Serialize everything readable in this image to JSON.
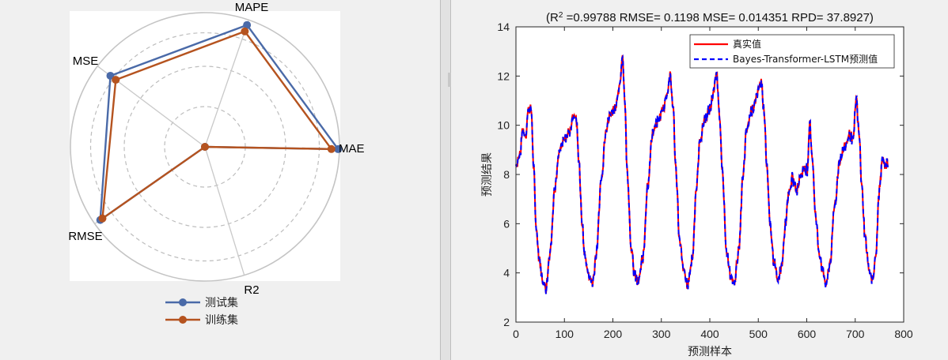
{
  "chart_data": [
    {
      "type": "radar",
      "axes": [
        "MAPE",
        "MAE",
        "R2",
        "RMSE",
        "MSE"
      ],
      "series": [
        {
          "name": "测试集",
          "color": "#4a6aa8",
          "values": [
            0.96,
            0.99,
            0.0,
            0.95,
            0.88
          ]
        },
        {
          "name": "训练集",
          "color": "#b5531f",
          "values": [
            0.91,
            0.94,
            0.0,
            0.93,
            0.83
          ]
        }
      ],
      "legend_position": "bottom"
    },
    {
      "type": "line",
      "title_prefix": "(R",
      "title_sup": "2",
      "title_rest": " =0.99788 RMSE= 0.1198 MSE= 0.014351 RPD= 37.8927)",
      "xlabel": "预测样本",
      "ylabel": "预测结果",
      "xlim": [
        0,
        800
      ],
      "ylim": [
        2,
        14
      ],
      "x_ticks": [
        0,
        100,
        200,
        300,
        400,
        500,
        600,
        700,
        800
      ],
      "y_ticks": [
        2,
        4,
        6,
        8,
        10,
        12,
        14
      ],
      "legend_position": "top-right",
      "series": [
        {
          "name": "真实值",
          "color": "#ff0000",
          "style": "solid"
        },
        {
          "name": "Bayes-Transformer-LSTM预测值",
          "color": "#0000ff",
          "style": "dashed"
        }
      ],
      "key_points": [
        [
          0,
          8.4
        ],
        [
          8,
          8.8
        ],
        [
          14,
          9.8
        ],
        [
          20,
          9.6
        ],
        [
          26,
          10.7
        ],
        [
          32,
          10.6
        ],
        [
          36,
          8.4
        ],
        [
          42,
          5.8
        ],
        [
          48,
          4.6
        ],
        [
          55,
          3.7
        ],
        [
          62,
          3.4
        ],
        [
          70,
          4.8
        ],
        [
          80,
          7.4
        ],
        [
          90,
          8.9
        ],
        [
          100,
          9.5
        ],
        [
          110,
          9.7
        ],
        [
          118,
          10.4
        ],
        [
          124,
          10.3
        ],
        [
          130,
          8.6
        ],
        [
          136,
          6.1
        ],
        [
          142,
          4.7
        ],
        [
          150,
          3.9
        ],
        [
          158,
          3.6
        ],
        [
          166,
          4.8
        ],
        [
          176,
          7.8
        ],
        [
          186,
          9.9
        ],
        [
          196,
          10.5
        ],
        [
          204,
          10.7
        ],
        [
          210,
          11.1
        ],
        [
          214,
          11.6
        ],
        [
          220,
          12.9
        ],
        [
          224,
          11.2
        ],
        [
          230,
          8.0
        ],
        [
          238,
          5.0
        ],
        [
          244,
          4.0
        ],
        [
          252,
          3.6
        ],
        [
          262,
          4.6
        ],
        [
          272,
          7.6
        ],
        [
          282,
          9.7
        ],
        [
          294,
          10.2
        ],
        [
          304,
          10.7
        ],
        [
          312,
          11.3
        ],
        [
          318,
          12.0
        ],
        [
          324,
          10.8
        ],
        [
          330,
          8.2
        ],
        [
          338,
          5.2
        ],
        [
          346,
          4.1
        ],
        [
          354,
          3.5
        ],
        [
          364,
          4.6
        ],
        [
          372,
          7.4
        ],
        [
          380,
          9.4
        ],
        [
          390,
          10.3
        ],
        [
          400,
          10.6
        ],
        [
          408,
          11.4
        ],
        [
          414,
          12.1
        ],
        [
          420,
          10.5
        ],
        [
          426,
          8.0
        ],
        [
          434,
          5.0
        ],
        [
          442,
          3.9
        ],
        [
          450,
          3.6
        ],
        [
          460,
          4.9
        ],
        [
          468,
          7.8
        ],
        [
          476,
          9.8
        ],
        [
          486,
          10.6
        ],
        [
          496,
          11.1
        ],
        [
          506,
          11.8
        ],
        [
          512,
          10.5
        ],
        [
          518,
          8.2
        ],
        [
          524,
          6.0
        ],
        [
          532,
          4.5
        ],
        [
          540,
          3.7
        ],
        [
          548,
          4.3
        ],
        [
          556,
          6.0
        ],
        [
          562,
          7.2
        ],
        [
          570,
          7.8
        ],
        [
          580,
          7.4
        ],
        [
          588,
          8.0
        ],
        [
          596,
          8.3
        ],
        [
          602,
          8.2
        ],
        [
          606,
          10.1
        ],
        [
          612,
          8.6
        ],
        [
          618,
          6.3
        ],
        [
          626,
          4.8
        ],
        [
          634,
          4.0
        ],
        [
          640,
          3.5
        ],
        [
          648,
          4.4
        ],
        [
          658,
          6.8
        ],
        [
          668,
          8.6
        ],
        [
          678,
          9.1
        ],
        [
          688,
          9.6
        ],
        [
          696,
          9.4
        ],
        [
          702,
          11.1
        ],
        [
          708,
          9.6
        ],
        [
          714,
          7.4
        ],
        [
          720,
          5.5
        ],
        [
          728,
          4.2
        ],
        [
          736,
          3.7
        ],
        [
          742,
          4.6
        ],
        [
          750,
          7.4
        ],
        [
          756,
          8.6
        ],
        [
          762,
          8.4
        ],
        [
          768,
          8.5
        ]
      ]
    }
  ]
}
